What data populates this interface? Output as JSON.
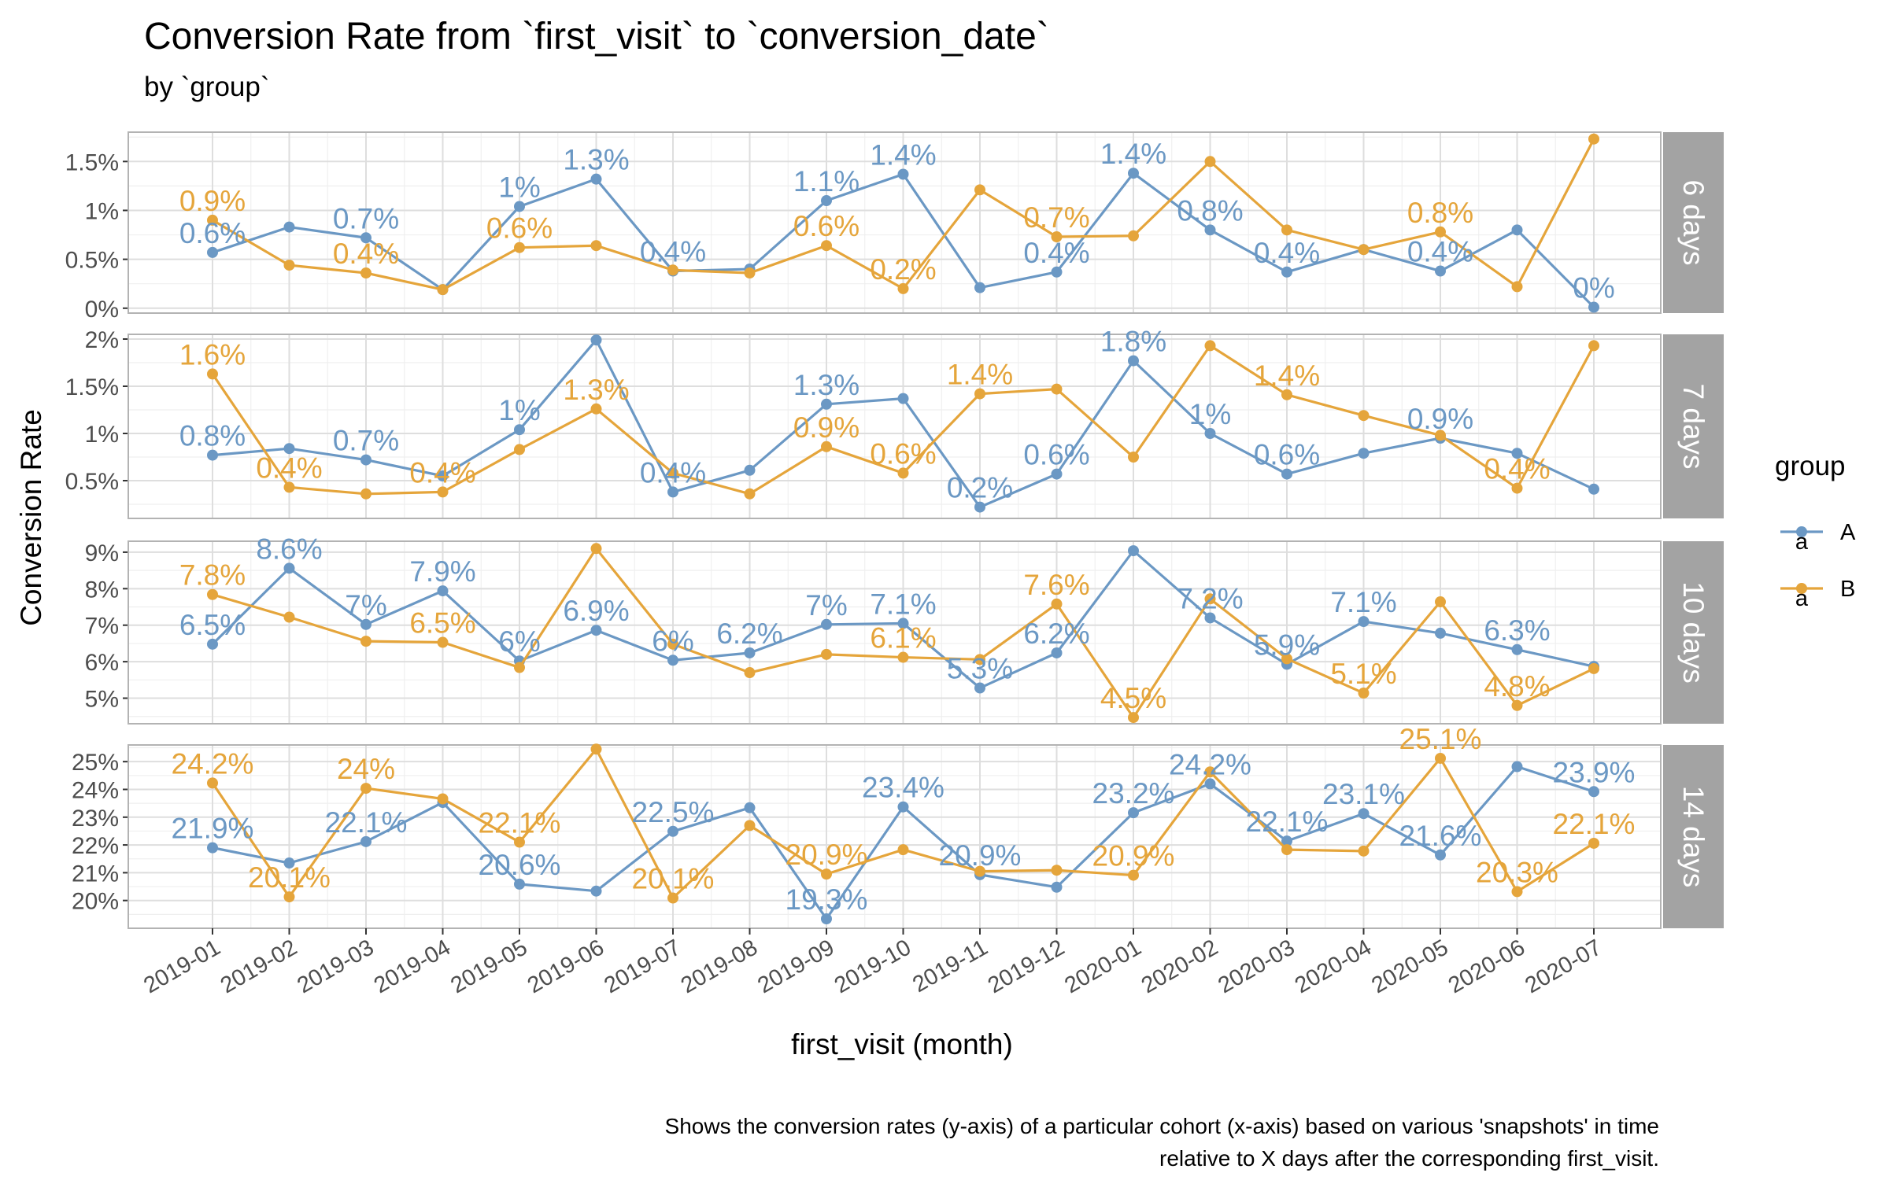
{
  "chart_data": {
    "type": "line",
    "title": "Conversion Rate from `first_visit` to `conversion_date`",
    "subtitle": "by `group`",
    "xlabel": "first_visit (month)",
    "ylabel": "Conversion Rate",
    "caption": [
      "Shows the conversion rates (y-axis) of a particular cohort (x-axis) based on various 'snapshots' in time",
      "relative to X days after the corresponding first_visit."
    ],
    "legend": {
      "title": "group",
      "placement": "right",
      "key_glyph": "a"
    },
    "colors": {
      "A": "#6b98c4",
      "B": "#e5a53b",
      "strip": "#a3a3a3",
      "panel_border": "#b3b3b3",
      "grid_major": "#dedede",
      "grid_minor": "#efefef"
    },
    "categories": [
      "2019-01",
      "2019-02",
      "2019-03",
      "2019-04",
      "2019-05",
      "2019-06",
      "2019-07",
      "2019-08",
      "2019-09",
      "2019-10",
      "2019-11",
      "2019-12",
      "2020-01",
      "2020-02",
      "2020-03",
      "2020-04",
      "2020-05",
      "2020-06",
      "2020-07"
    ],
    "panels": [
      {
        "strip": "6 days",
        "ylim": [
          -0.05,
          1.8
        ],
        "yticks": [
          0,
          0.5,
          1,
          1.5
        ],
        "ytick_labels": [
          "0%",
          "0.5%",
          "1%",
          "1.5%"
        ],
        "series": [
          {
            "name": "A",
            "values": [
              0.57,
              0.83,
              0.72,
              0.19,
              1.04,
              1.32,
              0.38,
              0.4,
              1.1,
              1.37,
              0.21,
              0.37,
              1.38,
              0.8,
              0.37,
              0.6,
              0.38,
              0.8,
              0.01
            ],
            "labels": [
              "0.6%",
              null,
              "0.7%",
              null,
              "1%",
              "1.3%",
              "0.4%",
              null,
              "1.1%",
              "1.4%",
              null,
              "0.4%",
              "1.4%",
              "0.8%",
              "0.4%",
              null,
              "0.4%",
              null,
              "0%"
            ]
          },
          {
            "name": "B",
            "values": [
              0.9,
              0.44,
              0.36,
              0.19,
              0.62,
              0.64,
              0.39,
              0.36,
              0.64,
              0.2,
              1.21,
              0.73,
              0.74,
              1.5,
              0.8,
              0.6,
              0.78,
              0.22,
              1.73
            ],
            "labels": [
              "0.9%",
              null,
              "0.4%",
              null,
              "0.6%",
              null,
              null,
              null,
              "0.6%",
              "0.2%",
              null,
              "0.7%",
              null,
              null,
              null,
              null,
              "0.8%",
              null,
              null
            ]
          }
        ]
      },
      {
        "strip": "7 days",
        "ylim": [
          0.1,
          2.05
        ],
        "yticks": [
          0.5,
          1,
          1.5,
          2
        ],
        "ytick_labels": [
          "0.5%",
          "1%",
          "1.5%",
          "2%"
        ],
        "series": [
          {
            "name": "A",
            "values": [
              0.77,
              0.84,
              0.72,
              0.55,
              1.04,
              1.99,
              0.38,
              0.61,
              1.31,
              1.37,
              0.22,
              0.57,
              1.77,
              1.0,
              0.57,
              0.79,
              0.95,
              0.79,
              0.41
            ],
            "labels": [
              "0.8%",
              null,
              "0.7%",
              null,
              "1%",
              null,
              "0.4%",
              null,
              "1.3%",
              null,
              "0.2%",
              "0.6%",
              "1.8%",
              "1%",
              "0.6%",
              null,
              "0.9%",
              null,
              null
            ]
          },
          {
            "name": "B",
            "values": [
              1.63,
              0.43,
              0.36,
              0.38,
              0.83,
              1.26,
              0.58,
              0.36,
              0.86,
              0.58,
              1.42,
              1.47,
              0.75,
              1.93,
              1.41,
              1.19,
              0.98,
              0.42,
              1.93
            ],
            "labels": [
              "1.6%",
              "0.4%",
              null,
              "0.4%",
              null,
              "1.3%",
              null,
              null,
              "0.9%",
              "0.6%",
              "1.4%",
              null,
              null,
              null,
              "1.4%",
              null,
              null,
              "0.4%",
              null
            ]
          }
        ]
      },
      {
        "strip": "10 days",
        "ylim": [
          4.3,
          9.3
        ],
        "yticks": [
          5,
          6,
          7,
          8,
          9
        ],
        "ytick_labels": [
          "5%",
          "6%",
          "7%",
          "8%",
          "9%"
        ],
        "series": [
          {
            "name": "A",
            "values": [
              6.48,
              8.56,
              7.02,
              7.94,
              6.02,
              6.86,
              6.04,
              6.24,
              7.02,
              7.05,
              5.28,
              6.24,
              9.04,
              7.2,
              5.93,
              7.1,
              6.78,
              6.33,
              5.87
            ],
            "labels": [
              "6.5%",
              "8.6%",
              "7%",
              "7.9%",
              "6%",
              "6.9%",
              "6%",
              "6.2%",
              "7%",
              "7.1%",
              "5.3%",
              "6.2%",
              null,
              "7.2%",
              "5.9%",
              "7.1%",
              null,
              "6.3%",
              null
            ]
          },
          {
            "name": "B",
            "values": [
              7.84,
              7.22,
              6.56,
              6.53,
              5.84,
              9.1,
              6.48,
              5.7,
              6.2,
              6.12,
              6.06,
              7.58,
              4.47,
              7.72,
              6.08,
              5.14,
              7.64,
              4.8,
              5.81
            ],
            "labels": [
              "7.8%",
              null,
              null,
              "6.5%",
              null,
              null,
              null,
              null,
              null,
              "6.1%",
              null,
              "7.6%",
              "4.5%",
              null,
              null,
              "5.1%",
              null,
              "4.8%",
              null
            ]
          }
        ]
      },
      {
        "strip": "14 days",
        "ylim": [
          19.0,
          25.6
        ],
        "yticks": [
          20,
          21,
          22,
          23,
          24,
          25
        ],
        "ytick_labels": [
          "20%",
          "21%",
          "22%",
          "23%",
          "24%",
          "25%"
        ],
        "series": [
          {
            "name": "A",
            "values": [
              21.9,
              21.35,
              22.12,
              23.53,
              20.59,
              20.34,
              22.49,
              23.34,
              19.34,
              23.37,
              20.93,
              20.48,
              23.16,
              24.2,
              22.14,
              23.13,
              21.64,
              24.82,
              23.92
            ],
            "labels": [
              "21.9%",
              null,
              "22.1%",
              null,
              "20.6%",
              null,
              "22.5%",
              null,
              "19.3%",
              "23.4%",
              "20.9%",
              null,
              "23.2%",
              "24.2%",
              "22.1%",
              "23.1%",
              "21.6%",
              null,
              "23.9%"
            ]
          },
          {
            "name": "B",
            "values": [
              24.23,
              20.13,
              24.04,
              23.66,
              22.1,
              25.45,
              20.09,
              22.7,
              20.95,
              21.83,
              21.05,
              21.09,
              20.91,
              24.63,
              21.83,
              21.78,
              25.12,
              20.32,
              22.06
            ],
            "labels": [
              "24.2%",
              "20.1%",
              "24%",
              null,
              "22.1%",
              null,
              "20.1%",
              null,
              "20.9%",
              null,
              null,
              null,
              "20.9%",
              null,
              null,
              null,
              "25.1%",
              "20.3%",
              "22.1%"
            ]
          }
        ]
      }
    ]
  }
}
